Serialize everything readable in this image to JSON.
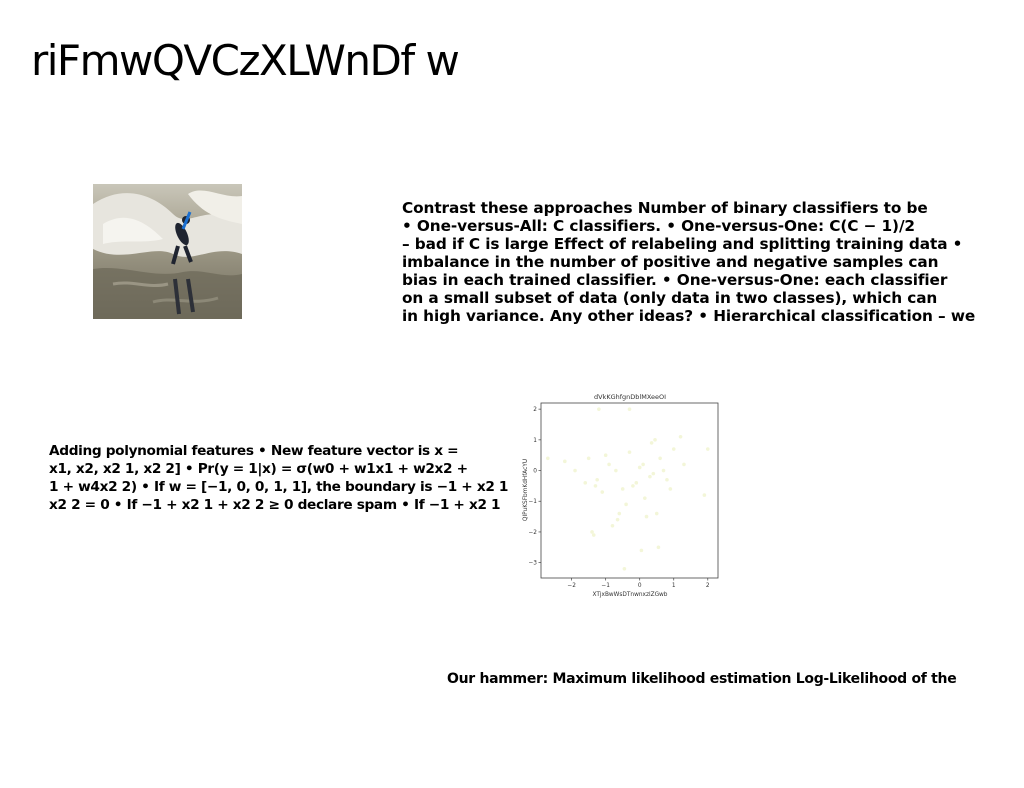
{
  "slide": {
    "title": "riFmwQVCzXLWnDf w"
  },
  "photo": {
    "icon": "surfer-wave-photo"
  },
  "text_blocks": {
    "approaches": [
      "Contrast these approaches Number of binary classifiers to be",
      "• One-versus-All: C classifiers. • One-versus-One: C(C − 1)/2",
      "– bad if C is large Effect of relabeling and splitting training data •",
      "imbalance in the number of positive and negative samples can",
      "bias in each trained classifier. • One-versus-One: each classifier",
      "on a small subset of data (only data in two classes), which can",
      "in high variance. Any other ideas? • Hierarchical classification – we"
    ],
    "polynomial": [
      "Adding polynomial features • New feature vector is x =",
      "x1, x2, x2 1, x2 2] • Pr(y = 1|x) = σ(w0 + w1x1 + w2x2 +",
      "1 + w4x2 2) • If w = [−1, 0, 0, 1, 1], the boundary is −1 + x2 1",
      "x2 2 = 0 • If −1 + x2 1 + x2 2 ≥ 0 declare spam • If −1 + x2 1"
    ],
    "hammer": "Our hammer: Maximum likelihood estimation Log-Likelihood of the"
  },
  "chart_data": {
    "type": "scatter",
    "title": "dVkKGhfgnDblMXeeOI",
    "xlabel": "XTjxBwWsDTnwnxzlZGwb",
    "ylabel": "QIPuKSFbmKdHfAcYU",
    "xlim": [
      -2.9,
      2.3
    ],
    "ylim": [
      -3.5,
      2.2
    ],
    "xticks": [
      -2,
      -1,
      0,
      1,
      2
    ],
    "yticks": [
      2,
      1,
      0,
      -1,
      -2,
      -3
    ],
    "grid": false,
    "marker_color": "#f3f6d8",
    "series": [
      {
        "x": [
          -1.2,
          -0.3,
          -2.7,
          -2.2,
          -1.9,
          -1.5,
          -1.3,
          -1.0,
          -0.9,
          -1.6,
          -1.1,
          -0.7,
          -0.5,
          -0.4,
          -0.2,
          -0.1,
          0.1,
          0.2,
          0.3,
          0.4,
          0.5,
          0.6,
          0.7,
          0.8,
          1.0,
          1.2,
          -1.4,
          -0.8,
          -0.6,
          0.0,
          0.35,
          0.55,
          0.9,
          1.3,
          2.0,
          -1.25,
          -0.3,
          0.45,
          -0.65,
          0.15,
          0.05,
          1.9,
          -1.35,
          -0.45
        ],
        "y": [
          2.0,
          2.0,
          0.4,
          0.3,
          0.0,
          0.4,
          -0.5,
          0.5,
          0.2,
          -0.4,
          -0.7,
          0.0,
          -0.6,
          -1.1,
          -0.5,
          -0.4,
          0.2,
          -1.5,
          -0.2,
          -0.1,
          -1.4,
          0.4,
          0.0,
          -0.3,
          0.7,
          1.1,
          -2.0,
          -1.8,
          -1.4,
          0.1,
          0.9,
          -2.5,
          -0.6,
          0.2,
          0.7,
          -0.3,
          0.6,
          1.0,
          -1.6,
          -0.9,
          -2.6,
          -0.8,
          -2.1,
          -3.2
        ]
      }
    ]
  }
}
